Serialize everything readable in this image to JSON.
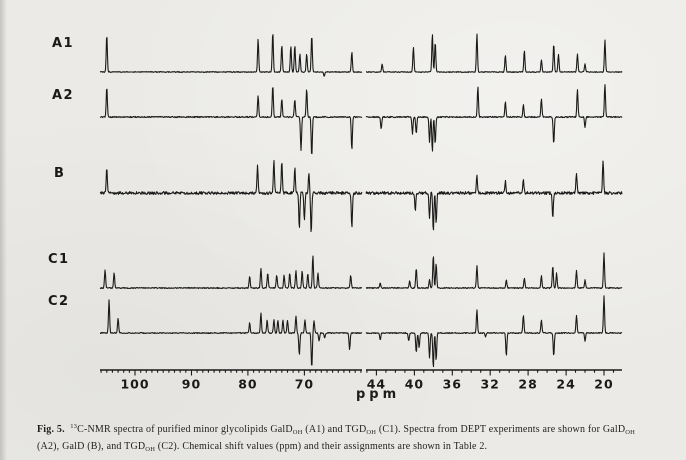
{
  "palette": {
    "background": "#ebeae6",
    "ink": "#1a1a1a"
  },
  "figure_labels": {
    "ppm_label": "ppm"
  },
  "caption": {
    "lines": [
      [
        {
          "t": "Fig. 5.",
          "s": "bold"
        },
        {
          "t": "  "
        },
        {
          "t": "13",
          "s": "sup"
        },
        {
          "t": "C-NMR spectra of purified minor glycolipids GalD"
        },
        {
          "t": "OH",
          "s": "sub"
        },
        {
          "t": " (A1) and TGD"
        },
        {
          "t": "OH",
          "s": "sub"
        },
        {
          "t": " (C1). Spectra from DEPT experiments are shown for GalD"
        },
        {
          "t": "OH",
          "s": "sub"
        }
      ],
      [
        {
          "t": "(A2), GalD (B), and TGD"
        },
        {
          "t": "OH",
          "s": "sub"
        },
        {
          "t": " (C2). Chemical shift values (ppm) and their assignments are shown in Table 2."
        }
      ]
    ]
  },
  "chart_data": {
    "type": "line",
    "title": "13C-NMR spectra of purified minor glycolipids GalDOH and TGDOH",
    "xlabel": "ppm",
    "ylabel": "",
    "legend": null,
    "grid": false,
    "x_axes": {
      "left": {
        "range": [
          106.2,
          59.8
        ],
        "major_ticks": [
          100,
          90,
          80,
          70
        ],
        "minor_step": 1
      },
      "right": {
        "range": [
          45.1,
          18.1
        ],
        "major_ticks": [
          44,
          40,
          36,
          32,
          28,
          24,
          20
        ],
        "minor_step": 1
      }
    },
    "rows": [
      {
        "label": "A1",
        "experiment": "normal",
        "noise": 0.4,
        "left_peaks": [
          [
            105.0,
            37
          ],
          [
            78.2,
            33
          ],
          [
            75.6,
            40
          ],
          [
            74.0,
            27
          ],
          [
            72.4,
            26
          ],
          [
            71.7,
            27
          ],
          [
            70.8,
            18
          ],
          [
            69.6,
            18
          ],
          [
            68.7,
            37
          ],
          [
            66.5,
            -4
          ],
          [
            61.6,
            20
          ]
        ],
        "right_peaks": [
          [
            43.4,
            8
          ],
          [
            40.1,
            25
          ],
          [
            38.1,
            38
          ],
          [
            37.8,
            30
          ],
          [
            33.4,
            38
          ],
          [
            30.4,
            17
          ],
          [
            28.4,
            22
          ],
          [
            26.6,
            12
          ],
          [
            25.3,
            28
          ],
          [
            24.8,
            18
          ],
          [
            22.8,
            18
          ],
          [
            22.0,
            8
          ],
          [
            19.9,
            32
          ]
        ]
      },
      {
        "label": "A2",
        "experiment": "DEPT",
        "noise": 0.6,
        "left_peaks": [
          [
            105.0,
            30
          ],
          [
            78.2,
            22
          ],
          [
            75.6,
            32
          ],
          [
            74.0,
            18
          ],
          [
            71.7,
            18
          ],
          [
            70.6,
            -33
          ],
          [
            69.6,
            28
          ],
          [
            68.7,
            -40
          ],
          [
            61.6,
            -33
          ]
        ],
        "right_peaks": [
          [
            43.5,
            -12
          ],
          [
            40.2,
            -17
          ],
          [
            39.8,
            -17
          ],
          [
            38.4,
            -25
          ],
          [
            38.1,
            -35
          ],
          [
            37.8,
            -27
          ],
          [
            33.3,
            30
          ],
          [
            30.4,
            15
          ],
          [
            28.5,
            13
          ],
          [
            26.6,
            18
          ],
          [
            25.3,
            -27
          ],
          [
            22.8,
            28
          ],
          [
            22.0,
            -10
          ],
          [
            19.9,
            33
          ]
        ]
      },
      {
        "label": "B",
        "experiment": "DEPT",
        "noise": 1.4,
        "left_peaks": [
          [
            105.0,
            25
          ],
          [
            78.3,
            27
          ],
          [
            75.4,
            33
          ],
          [
            74.0,
            32
          ],
          [
            71.7,
            25
          ],
          [
            70.9,
            -35
          ],
          [
            70.0,
            -28
          ],
          [
            69.2,
            20
          ],
          [
            68.8,
            -40
          ],
          [
            61.6,
            -35
          ]
        ],
        "right_peaks": [
          [
            39.9,
            -18
          ],
          [
            38.4,
            -25
          ],
          [
            38.0,
            -40
          ],
          [
            37.7,
            -30
          ],
          [
            33.4,
            18
          ],
          [
            30.4,
            12
          ],
          [
            28.5,
            13
          ],
          [
            25.4,
            -25
          ],
          [
            22.9,
            20
          ],
          [
            20.1,
            33
          ]
        ]
      },
      {
        "label": "C1",
        "experiment": "normal",
        "noise": 0.5,
        "left_peaks": [
          [
            105.3,
            18
          ],
          [
            103.7,
            15
          ],
          [
            79.7,
            12
          ],
          [
            77.7,
            20
          ],
          [
            76.5,
            15
          ],
          [
            74.9,
            13
          ],
          [
            73.6,
            13
          ],
          [
            72.6,
            15
          ],
          [
            71.5,
            17
          ],
          [
            70.4,
            17
          ],
          [
            69.4,
            15
          ],
          [
            68.5,
            33
          ],
          [
            67.6,
            15
          ],
          [
            61.8,
            13
          ]
        ],
        "right_peaks": [
          [
            43.6,
            5
          ],
          [
            40.5,
            7
          ],
          [
            39.8,
            20
          ],
          [
            38.4,
            8
          ],
          [
            38.0,
            33
          ],
          [
            37.7,
            25
          ],
          [
            33.4,
            22
          ],
          [
            30.3,
            8
          ],
          [
            28.4,
            10
          ],
          [
            26.6,
            12
          ],
          [
            25.4,
            22
          ],
          [
            25.0,
            15
          ],
          [
            22.9,
            18
          ],
          [
            22.0,
            8
          ],
          [
            20.0,
            35
          ]
        ]
      },
      {
        "label": "C2",
        "experiment": "DEPT",
        "noise": 0.5,
        "left_peaks": [
          [
            104.6,
            33
          ],
          [
            103.0,
            15
          ],
          [
            79.7,
            10
          ],
          [
            77.7,
            20
          ],
          [
            76.6,
            13
          ],
          [
            75.4,
            13
          ],
          [
            74.7,
            13
          ],
          [
            73.8,
            13
          ],
          [
            73.0,
            13
          ],
          [
            71.5,
            17
          ],
          [
            70.9,
            -22
          ],
          [
            69.9,
            13
          ],
          [
            68.7,
            -35
          ],
          [
            68.3,
            12
          ],
          [
            67.4,
            -8
          ],
          [
            66.4,
            -5
          ],
          [
            62.0,
            -17
          ]
        ],
        "right_peaks": [
          [
            43.6,
            -7
          ],
          [
            40.6,
            -8
          ],
          [
            39.8,
            -20
          ],
          [
            39.5,
            -15
          ],
          [
            38.4,
            -25
          ],
          [
            38.0,
            -35
          ],
          [
            37.7,
            -28
          ],
          [
            33.4,
            23
          ],
          [
            32.5,
            -4
          ],
          [
            30.3,
            -23
          ],
          [
            28.5,
            18
          ],
          [
            26.6,
            13
          ],
          [
            25.3,
            -23
          ],
          [
            22.9,
            18
          ],
          [
            22.0,
            -8
          ],
          [
            20.0,
            37
          ]
        ]
      }
    ]
  }
}
